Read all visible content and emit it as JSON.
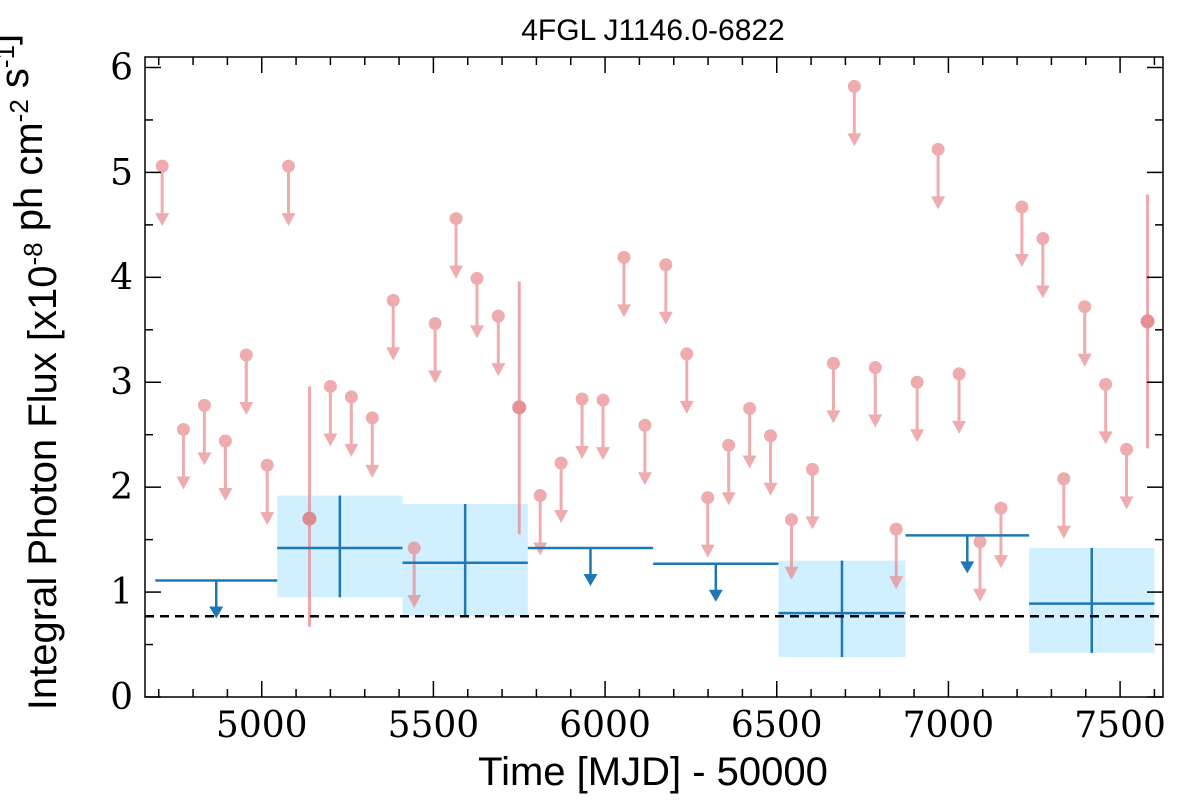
{
  "chart_data": {
    "type": "scatter",
    "title": "4FGL J1146.0-6822",
    "xlabel": "Time [MJD] - 50000",
    "ylabel": "Integral Photon Flux [x10$^{-8}$ ph cm$^{-2}$ s$^{-1}$]",
    "xlim": [
      4660,
      7625
    ],
    "ylim": [
      0,
      6.1
    ],
    "xticks": [
      5000,
      5500,
      6000,
      6500,
      7000,
      7500
    ],
    "yticks": [
      0,
      1,
      2,
      3,
      4,
      5,
      6
    ],
    "reference_line": {
      "y": 0.77,
      "style": "dashed",
      "color": "#000000"
    },
    "colors": {
      "fine_points": "#e8898d",
      "coarse_bins": "#1f77b4",
      "coarse_band": "#cceeff"
    },
    "fine_upper_limits": [
      {
        "x": 4710,
        "y": 5.06
      },
      {
        "x": 4772,
        "y": 2.55
      },
      {
        "x": 4833,
        "y": 2.78
      },
      {
        "x": 4894,
        "y": 2.44
      },
      {
        "x": 4955,
        "y": 3.26
      },
      {
        "x": 5016,
        "y": 2.21
      },
      {
        "x": 5078,
        "y": 5.06
      },
      {
        "x": 5200,
        "y": 2.96
      },
      {
        "x": 5261,
        "y": 2.86
      },
      {
        "x": 5322,
        "y": 2.66
      },
      {
        "x": 5383,
        "y": 3.78
      },
      {
        "x": 5444,
        "y": 1.42
      },
      {
        "x": 5505,
        "y": 3.56
      },
      {
        "x": 5566,
        "y": 4.56
      },
      {
        "x": 5627,
        "y": 3.99
      },
      {
        "x": 5689,
        "y": 3.63
      },
      {
        "x": 5811,
        "y": 1.92
      },
      {
        "x": 5872,
        "y": 2.23
      },
      {
        "x": 5933,
        "y": 2.84
      },
      {
        "x": 5994,
        "y": 2.83
      },
      {
        "x": 6055,
        "y": 4.19
      },
      {
        "x": 6116,
        "y": 2.59
      },
      {
        "x": 6177,
        "y": 4.12
      },
      {
        "x": 6238,
        "y": 3.27
      },
      {
        "x": 6299,
        "y": 1.9
      },
      {
        "x": 6360,
        "y": 2.4
      },
      {
        "x": 6421,
        "y": 2.75
      },
      {
        "x": 6482,
        "y": 2.49
      },
      {
        "x": 6543,
        "y": 1.69
      },
      {
        "x": 6604,
        "y": 2.17
      },
      {
        "x": 6665,
        "y": 3.18
      },
      {
        "x": 6726,
        "y": 5.82
      },
      {
        "x": 6787,
        "y": 3.14
      },
      {
        "x": 6848,
        "y": 1.6
      },
      {
        "x": 6909,
        "y": 3.0
      },
      {
        "x": 6970,
        "y": 5.22
      },
      {
        "x": 7031,
        "y": 3.08
      },
      {
        "x": 7092,
        "y": 1.48
      },
      {
        "x": 7153,
        "y": 1.8
      },
      {
        "x": 7214,
        "y": 4.67
      },
      {
        "x": 7275,
        "y": 4.37
      },
      {
        "x": 7336,
        "y": 2.08
      },
      {
        "x": 7397,
        "y": 3.72
      },
      {
        "x": 7458,
        "y": 2.98
      },
      {
        "x": 7519,
        "y": 2.36
      }
    ],
    "fine_detections": [
      {
        "x": 5139,
        "y": 1.7,
        "ylo": 0.67,
        "yhi": 2.96
      },
      {
        "x": 5750,
        "y": 2.76,
        "ylo": 1.55,
        "yhi": 3.96
      },
      {
        "x": 7580,
        "y": 3.58,
        "ylo": 2.37,
        "yhi": 4.79
      }
    ],
    "coarse_upper_limits": [
      {
        "x0": 4690,
        "x1": 5045,
        "y": 1.11
      },
      {
        "x0": 5775,
        "x1": 6140,
        "y": 1.42
      },
      {
        "x0": 6140,
        "x1": 6505,
        "y": 1.27
      },
      {
        "x0": 6875,
        "x1": 7235,
        "y": 1.54
      }
    ],
    "coarse_detections": [
      {
        "x0": 5045,
        "x1": 5410,
        "y": 1.42,
        "ylo": 0.95,
        "yhi": 1.92
      },
      {
        "x0": 5410,
        "x1": 5775,
        "y": 1.28,
        "ylo": 0.77,
        "yhi": 1.84
      },
      {
        "x0": 6505,
        "x1": 6875,
        "y": 0.8,
        "ylo": 0.38,
        "yhi": 1.3
      },
      {
        "x0": 7235,
        "x1": 7600,
        "y": 0.89,
        "ylo": 0.42,
        "yhi": 1.42
      }
    ]
  }
}
